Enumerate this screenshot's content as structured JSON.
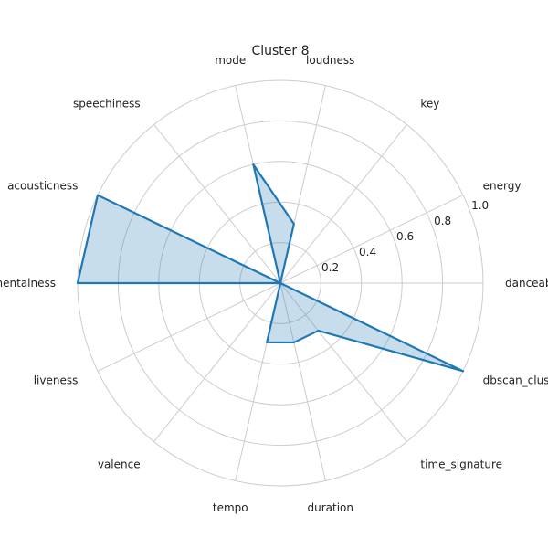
{
  "chart_data": {
    "type": "radar",
    "title": "Cluster 8",
    "categories": [
      "danceability",
      "energy",
      "key",
      "loudness",
      "mode",
      "speechiness",
      "acousticness",
      "instrumentalness",
      "liveness",
      "valence",
      "tempo",
      "duration",
      "time_signature",
      "dbscan_cluster"
    ],
    "values": [
      0.0,
      0.0,
      0.0,
      0.3,
      0.6,
      0.0,
      1.0,
      1.0,
      0.0,
      0.0,
      0.3,
      0.3,
      0.3,
      1.0
    ],
    "rlim": [
      0,
      1.0
    ],
    "rticks": [
      "0.2",
      "0.4",
      "0.6",
      "0.8",
      "1.0"
    ],
    "grid": true,
    "colors": {
      "line": "#1f77b4",
      "fill": "#1f77b4",
      "grid": "#cccccc"
    }
  }
}
